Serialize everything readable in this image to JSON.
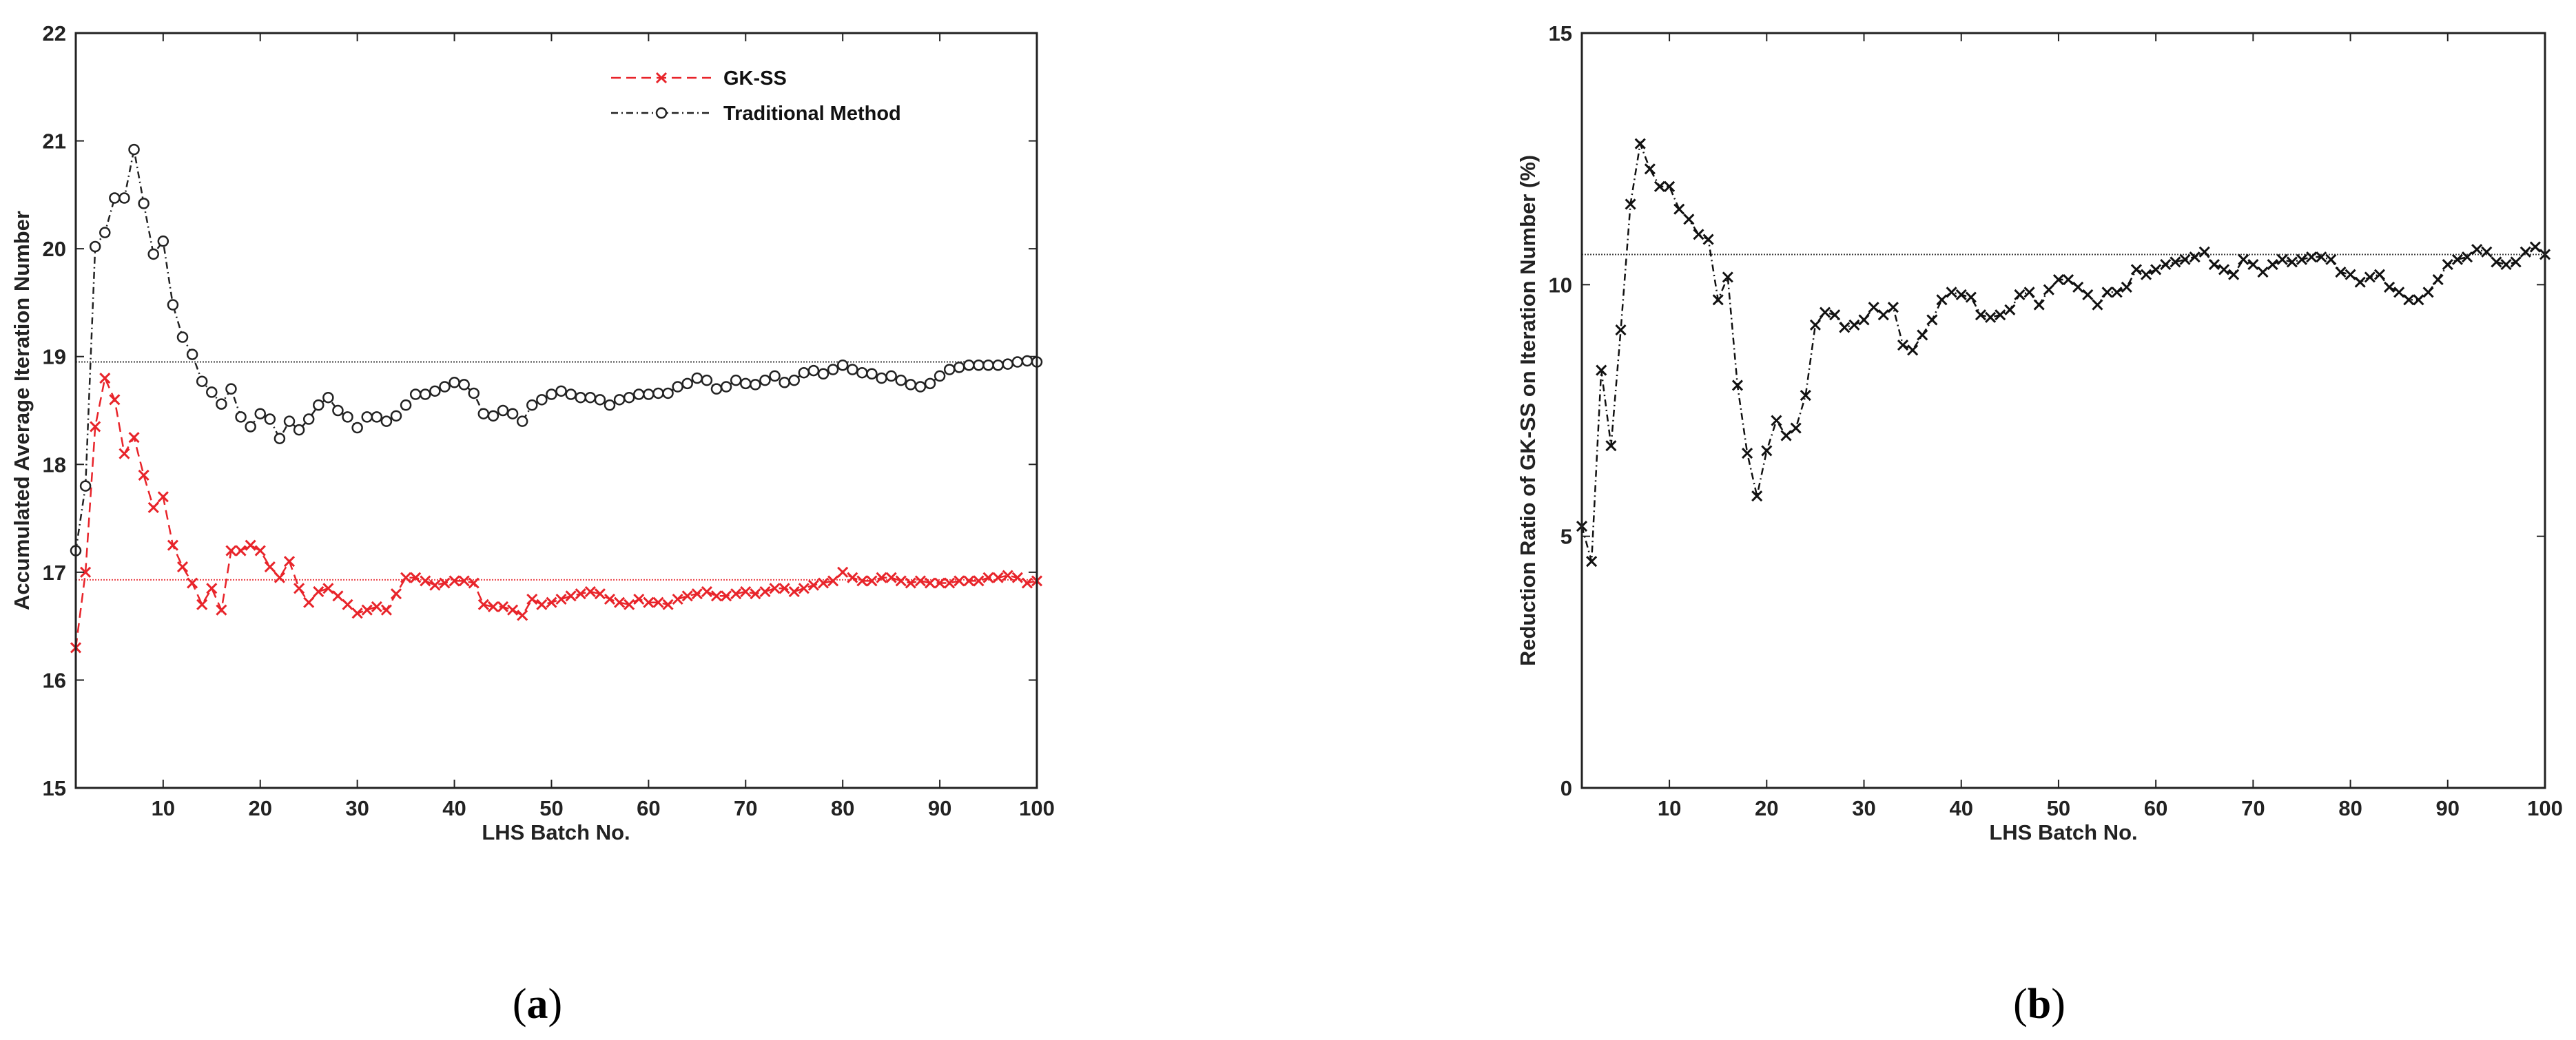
{
  "panels": [
    {
      "label_open": "(",
      "label_letter": "a",
      "label_close": ")"
    },
    {
      "label_open": "(",
      "label_letter": "b",
      "label_close": ")"
    }
  ],
  "chart_data": [
    {
      "type": "line",
      "xlabel": "LHS Batch No.",
      "ylabel": "Accumulated Average Iteration Number",
      "xlim": [
        1,
        100
      ],
      "ylim": [
        15,
        22
      ],
      "xticks": [
        10,
        20,
        30,
        40,
        50,
        60,
        70,
        80,
        90,
        100
      ],
      "yticks": [
        15,
        16,
        17,
        18,
        19,
        20,
        21,
        22
      ],
      "grid": false,
      "legend_position": "top-center",
      "x": [
        1,
        2,
        3,
        4,
        5,
        6,
        7,
        8,
        9,
        10,
        11,
        12,
        13,
        14,
        15,
        16,
        17,
        18,
        19,
        20,
        21,
        22,
        23,
        24,
        25,
        26,
        27,
        28,
        29,
        30,
        31,
        32,
        33,
        34,
        35,
        36,
        37,
        38,
        39,
        40,
        41,
        42,
        43,
        44,
        45,
        46,
        47,
        48,
        49,
        50,
        51,
        52,
        53,
        54,
        55,
        56,
        57,
        58,
        59,
        60,
        61,
        62,
        63,
        64,
        65,
        66,
        67,
        68,
        69,
        70,
        71,
        72,
        73,
        74,
        75,
        76,
        77,
        78,
        79,
        80,
        81,
        82,
        83,
        84,
        85,
        86,
        87,
        88,
        89,
        90,
        91,
        92,
        93,
        94,
        95,
        96,
        97,
        98,
        99,
        100
      ],
      "series": [
        {
          "name": "GK-SS",
          "color": "#e8242a",
          "marker": "x",
          "dash": "dashed",
          "values": [
            16.3,
            17.0,
            18.35,
            18.8,
            18.6,
            18.1,
            18.25,
            17.9,
            17.6,
            17.7,
            17.25,
            17.05,
            16.9,
            16.7,
            16.85,
            16.65,
            17.2,
            17.2,
            17.25,
            17.2,
            17.05,
            16.95,
            17.1,
            16.85,
            16.72,
            16.82,
            16.85,
            16.78,
            16.7,
            16.62,
            16.65,
            16.68,
            16.65,
            16.8,
            16.95,
            16.95,
            16.92,
            16.88,
            16.9,
            16.92,
            16.92,
            16.9,
            16.7,
            16.68,
            16.68,
            16.65,
            16.6,
            16.75,
            16.7,
            16.72,
            16.75,
            16.78,
            16.8,
            16.82,
            16.8,
            16.75,
            16.72,
            16.7,
            16.75,
            16.72,
            16.72,
            16.7,
            16.75,
            16.78,
            16.8,
            16.82,
            16.78,
            16.78,
            16.8,
            16.82,
            16.8,
            16.82,
            16.85,
            16.85,
            16.82,
            16.85,
            16.88,
            16.9,
            16.92,
            17.0,
            16.95,
            16.92,
            16.92,
            16.95,
            16.95,
            16.92,
            16.9,
            16.92,
            16.9,
            16.9,
            16.9,
            16.92,
            16.92,
            16.92,
            16.95,
            16.95,
            16.97,
            16.95,
            16.9,
            16.92
          ]
        },
        {
          "name": "Traditional Method",
          "color": "#222222",
          "marker": "o",
          "dash": "dashdot",
          "values": [
            17.2,
            17.8,
            20.02,
            20.15,
            20.47,
            20.47,
            20.92,
            20.42,
            19.95,
            20.07,
            19.48,
            19.18,
            19.02,
            18.77,
            18.67,
            18.56,
            18.7,
            18.44,
            18.35,
            18.47,
            18.42,
            18.24,
            18.4,
            18.32,
            18.42,
            18.55,
            18.62,
            18.5,
            18.44,
            18.34,
            18.44,
            18.44,
            18.4,
            18.45,
            18.55,
            18.65,
            18.65,
            18.68,
            18.72,
            18.76,
            18.74,
            18.66,
            18.47,
            18.45,
            18.5,
            18.47,
            18.4,
            18.55,
            18.6,
            18.65,
            18.68,
            18.65,
            18.62,
            18.62,
            18.6,
            18.55,
            18.6,
            18.62,
            18.65,
            18.65,
            18.66,
            18.66,
            18.72,
            18.75,
            18.8,
            18.78,
            18.7,
            18.72,
            18.78,
            18.75,
            18.74,
            18.78,
            18.82,
            18.76,
            18.78,
            18.85,
            18.87,
            18.84,
            18.88,
            18.92,
            18.88,
            18.85,
            18.84,
            18.8,
            18.82,
            18.78,
            18.74,
            18.72,
            18.75,
            18.82,
            18.88,
            18.9,
            18.92,
            18.92,
            18.92,
            18.92,
            18.93,
            18.95,
            18.96,
            18.95
          ]
        }
      ],
      "reference_lines": [
        {
          "y": 18.95,
          "color": "#222222"
        },
        {
          "y": 16.93,
          "color": "#e8242a"
        }
      ]
    },
    {
      "type": "line",
      "xlabel": "LHS Batch No.",
      "ylabel": "Reduction Ratio of GK-SS on Iteration Number (%)",
      "xlim": [
        1,
        100
      ],
      "ylim": [
        0,
        15
      ],
      "xticks": [
        10,
        20,
        30,
        40,
        50,
        60,
        70,
        80,
        90,
        100
      ],
      "yticks": [
        0,
        5,
        10,
        15
      ],
      "grid": false,
      "x": [
        1,
        2,
        3,
        4,
        5,
        6,
        7,
        8,
        9,
        10,
        11,
        12,
        13,
        14,
        15,
        16,
        17,
        18,
        19,
        20,
        21,
        22,
        23,
        24,
        25,
        26,
        27,
        28,
        29,
        30,
        31,
        32,
        33,
        34,
        35,
        36,
        37,
        38,
        39,
        40,
        41,
        42,
        43,
        44,
        45,
        46,
        47,
        48,
        49,
        50,
        51,
        52,
        53,
        54,
        55,
        56,
        57,
        58,
        59,
        60,
        61,
        62,
        63,
        64,
        65,
        66,
        67,
        68,
        69,
        70,
        71,
        72,
        73,
        74,
        75,
        76,
        77,
        78,
        79,
        80,
        81,
        82,
        83,
        84,
        85,
        86,
        87,
        88,
        89,
        90,
        91,
        92,
        93,
        94,
        95,
        96,
        97,
        98,
        99,
        100
      ],
      "series": [
        {
          "color": "#111111",
          "marker": "x",
          "dash": "dashdot",
          "values": [
            5.2,
            4.5,
            8.3,
            6.8,
            9.1,
            11.6,
            12.8,
            12.3,
            11.95,
            11.95,
            11.5,
            11.3,
            11.0,
            10.9,
            9.7,
            10.15,
            8.0,
            6.65,
            5.8,
            6.7,
            7.3,
            7.0,
            7.15,
            7.8,
            9.2,
            9.45,
            9.4,
            9.15,
            9.2,
            9.3,
            9.55,
            9.4,
            9.55,
            8.8,
            8.7,
            9.0,
            9.3,
            9.7,
            9.85,
            9.8,
            9.75,
            9.4,
            9.35,
            9.4,
            9.5,
            9.8,
            9.85,
            9.6,
            9.9,
            10.1,
            10.1,
            9.95,
            9.8,
            9.6,
            9.85,
            9.85,
            9.95,
            10.3,
            10.2,
            10.3,
            10.4,
            10.45,
            10.5,
            10.55,
            10.65,
            10.4,
            10.3,
            10.2,
            10.5,
            10.4,
            10.25,
            10.4,
            10.5,
            10.45,
            10.5,
            10.55,
            10.55,
            10.5,
            10.25,
            10.2,
            10.05,
            10.15,
            10.2,
            9.95,
            9.85,
            9.7,
            9.7,
            9.85,
            10.1,
            10.4,
            10.5,
            10.55,
            10.7,
            10.65,
            10.45,
            10.4,
            10.45,
            10.65,
            10.75,
            10.6
          ]
        }
      ],
      "reference_lines": [
        {
          "y": 10.6,
          "color": "#222222"
        }
      ]
    }
  ]
}
